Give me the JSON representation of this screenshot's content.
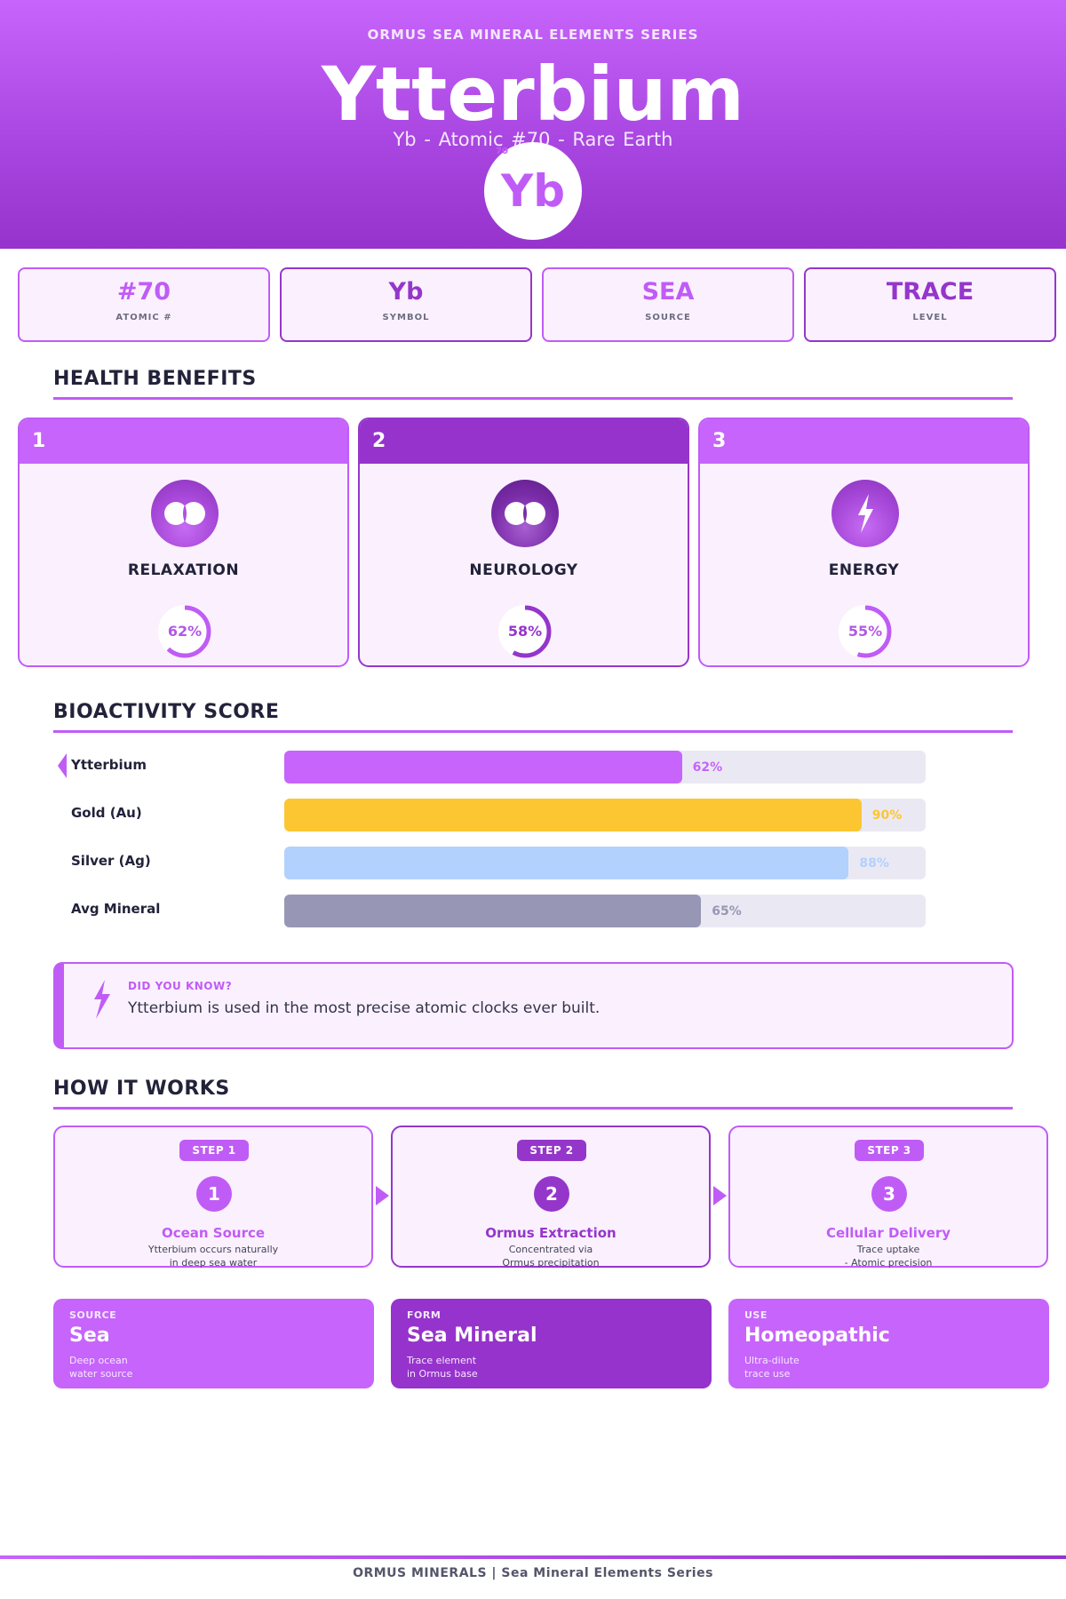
{
  "header": {
    "series": "ORMUS SEA MINERAL ELEMENTS SERIES",
    "title": "Ytterbium",
    "subtitle": "Yb  -  Atomic #70  -  Rare Earth",
    "badge_symbol": "Yb",
    "badge_number": "70"
  },
  "stats": [
    {
      "value": "#70",
      "label": "ATOMIC #"
    },
    {
      "value": "Yb",
      "label": "SYMBOL"
    },
    {
      "value": "SEA",
      "label": "SOURCE"
    },
    {
      "value": "TRACE",
      "label": "LEVEL"
    }
  ],
  "benefits": {
    "heading": "HEALTH BENEFITS",
    "cards": [
      {
        "number": "1",
        "name": "RELAXATION",
        "percent": 62,
        "percent_label": "62%",
        "icon": "relaxation-icon"
      },
      {
        "number": "2",
        "name": "NEUROLOGY",
        "percent": 58,
        "percent_label": "58%",
        "icon": "neurology-icon"
      },
      {
        "number": "3",
        "name": "ENERGY",
        "percent": 55,
        "percent_label": "55%",
        "icon": "lightning-icon"
      }
    ]
  },
  "bioactivity": {
    "heading": "BIOACTIVITY SCORE",
    "rows": [
      {
        "label": "Ytterbium",
        "value": 62,
        "value_label": "62%",
        "color": "#c664fb",
        "label_color": "#c664fb"
      },
      {
        "label": "Gold (Au)",
        "value": 90,
        "value_label": "90%",
        "color": "#fcc633",
        "label_color": "#fcc633"
      },
      {
        "label": "Silver (Ag)",
        "value": 88,
        "value_label": "88%",
        "color": "#b2d1fd",
        "label_color": "#b2d1fd"
      },
      {
        "label": "Avg Mineral",
        "value": 65,
        "value_label": "65%",
        "color": "#9797b5",
        "label_color": "#9797b5"
      }
    ]
  },
  "fact": {
    "label": "DID YOU KNOW?",
    "text": "Ytterbium is used in the most precise atomic clocks ever built."
  },
  "how": {
    "heading": "HOW IT WORKS",
    "steps": [
      {
        "pill": "STEP 1",
        "number": "1",
        "title": "Ocean Source",
        "desc1": "Ytterbium occurs naturally",
        "desc2": "in deep sea water"
      },
      {
        "pill": "STEP 2",
        "number": "2",
        "title": "Ormus Extraction",
        "desc1": "Concentrated via",
        "desc2": "Ormus precipitation"
      },
      {
        "pill": "STEP 3",
        "number": "3",
        "title": "Cellular Delivery",
        "desc1": "Trace uptake",
        "desc2": "- Atomic precision"
      }
    ]
  },
  "tiles": [
    {
      "label": "SOURCE",
      "value": "Sea",
      "desc1": "Deep ocean",
      "desc2": "water source"
    },
    {
      "label": "FORM",
      "value": "Sea Mineral",
      "desc1": "Trace element",
      "desc2": "in Ormus base"
    },
    {
      "label": "USE",
      "value": "Homeopathic",
      "desc1": "Ultra-dilute",
      "desc2": "trace use"
    }
  ],
  "footer": {
    "text": "ORMUS MINERALS  |  Sea Mineral Elements Series"
  },
  "colors": {
    "primary": "#c664fb",
    "primary_dark": "#9633cc",
    "card_bg": "#fbf1fe"
  }
}
